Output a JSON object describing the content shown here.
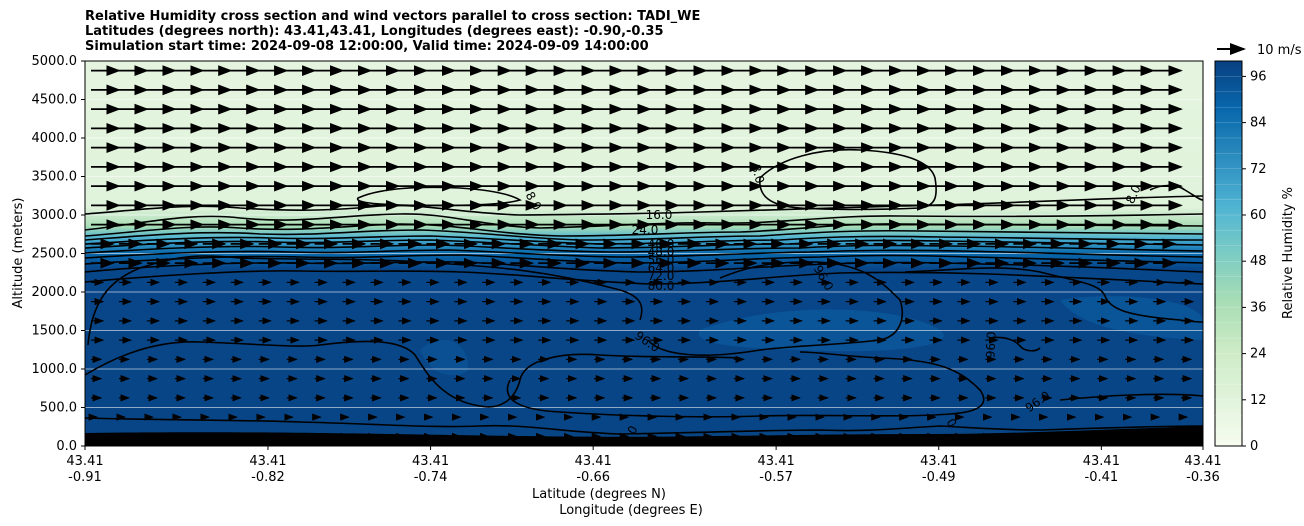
{
  "chart_data": {
    "type": "heatmap",
    "title_lines": [
      "Relative Humidity cross section and wind vectors parallel to cross section: TADI_WE",
      "Latitudes (degrees north): 43.41,43.41, Longitudes (degrees east): -0.90,-0.35",
      "Simulation start time: 2024-09-08 12:00:00, Valid time: 2024-09-09 14:00:00"
    ],
    "xlabel_lines": [
      "Latitude (degrees N)",
      "Longitude (degrees E)"
    ],
    "ylabel": "Altitude (meters)",
    "colorbar_label": "Relative Humidity %",
    "quiver_key_label": "10 m/s",
    "ylim": [
      0,
      5000
    ],
    "yticks": [
      "0.0",
      "500.0",
      "1000.0",
      "1500.0",
      "2000.0",
      "2500.0",
      "3000.0",
      "3500.0",
      "4000.0",
      "4500.0",
      "5000.0"
    ],
    "xticks": [
      {
        "lat": "43.41",
        "lon": "-0.91"
      },
      {
        "lat": "43.41",
        "lon": "-0.82"
      },
      {
        "lat": "43.41",
        "lon": "-0.74"
      },
      {
        "lat": "43.41",
        "lon": "-0.66"
      },
      {
        "lat": "43.41",
        "lon": "-0.57"
      },
      {
        "lat": "43.41",
        "lon": "-0.49"
      },
      {
        "lat": "43.41",
        "lon": "-0.41"
      },
      {
        "lat": "43.41",
        "lon": "-0.36"
      }
    ],
    "colorbar_range": [
      0,
      100
    ],
    "colorbar_ticks": [
      "0",
      "12",
      "24",
      "36",
      "48",
      "60",
      "72",
      "84",
      "96"
    ],
    "colormap": [
      "#f7fcf0",
      "#e0f3db",
      "#ccebc5",
      "#a8ddb5",
      "#7bccc4",
      "#4eb3d3",
      "#2b8cbe",
      "#0868ac",
      "#084081"
    ],
    "contour_labels": [
      "8.0",
      "16.0",
      "24.0",
      "40.0",
      "48.0",
      "56.0",
      "64.0",
      "72.0",
      "80.0",
      "88.0",
      "96.0"
    ],
    "rh_profile": [
      {
        "alt": 0,
        "rh": 93
      },
      {
        "alt": 1000,
        "rh": 96
      },
      {
        "alt": 2000,
        "rh": 96
      },
      {
        "alt": 2300,
        "rh": 84
      },
      {
        "alt": 2500,
        "rh": 56
      },
      {
        "alt": 2700,
        "rh": 32
      },
      {
        "alt": 3000,
        "rh": 12
      },
      {
        "alt": 5000,
        "rh": 8
      }
    ],
    "grid": "horizontal",
    "legend_placement": "top-right"
  }
}
